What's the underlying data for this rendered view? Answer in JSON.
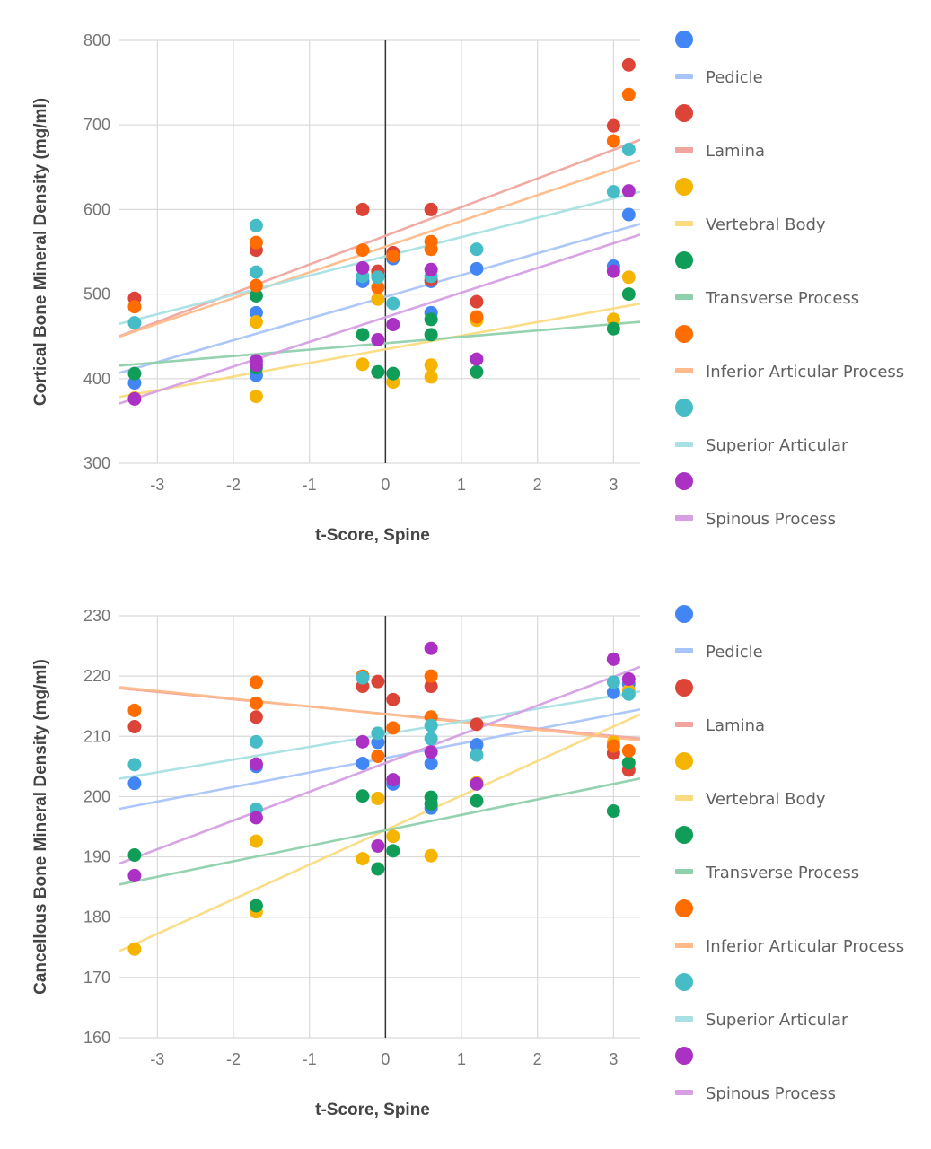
{
  "series_meta": [
    {
      "name": "Pedicle",
      "point_color": "#4285f4",
      "line_color": "#a9c4f9"
    },
    {
      "name": "Lamina",
      "point_color": "#db4437",
      "line_color": "#f0a59f"
    },
    {
      "name": "Vertebral Body",
      "point_color": "#f4b400",
      "line_color": "#fadb80"
    },
    {
      "name": "Transverse Process",
      "point_color": "#0f9d58",
      "line_color": "#8fd0ac"
    },
    {
      "name": "Inferior Articular Process",
      "point_color": "#ff6d01",
      "line_color": "#ffba8a"
    },
    {
      "name": "Superior Articular",
      "point_color": "#46bdc6",
      "line_color": "#a9e0e4"
    },
    {
      "name": "Spinous Process",
      "point_color": "#ab30c4",
      "line_color": "#d6a0e3"
    }
  ],
  "chart_data": [
    {
      "type": "scatter",
      "xlabel": "t-Score, Spine",
      "ylabel": "Cortical Bone Mineral Density (mg/ml)",
      "xlim": [
        -3.5,
        3.35
      ],
      "ylim": [
        300,
        800
      ],
      "xticks": [
        -3,
        -2,
        -1,
        0,
        1,
        2,
        3
      ],
      "yticks": [
        300,
        400,
        500,
        600,
        700,
        800
      ],
      "grid": true,
      "legend": "right",
      "trendlines": "linear",
      "series": [
        {
          "name": "Pedicle",
          "points": [
            [
              -3.3,
              395
            ],
            [
              -1.7,
              478
            ],
            [
              -1.7,
              404
            ],
            [
              -0.3,
              515
            ],
            [
              -0.1,
              522
            ],
            [
              0.1,
              542
            ],
            [
              0.6,
              515
            ],
            [
              0.6,
              478
            ],
            [
              1.2,
              530
            ],
            [
              3.0,
              533
            ],
            [
              3.2,
              594
            ]
          ]
        },
        {
          "name": "Lamina",
          "points": [
            [
              -3.3,
              495
            ],
            [
              -1.7,
              552
            ],
            [
              -0.3,
              600
            ],
            [
              -0.1,
              527
            ],
            [
              0.1,
              549
            ],
            [
              0.6,
              600
            ],
            [
              0.6,
              517
            ],
            [
              1.2,
              491
            ],
            [
              3.0,
              699
            ],
            [
              3.2,
              771
            ]
          ]
        },
        {
          "name": "Vertebral Body",
          "points": [
            [
              -3.3,
              377
            ],
            [
              -1.7,
              467
            ],
            [
              -1.7,
              379
            ],
            [
              -0.3,
              417
            ],
            [
              -0.1,
              494
            ],
            [
              0.1,
              396
            ],
            [
              0.6,
              416
            ],
            [
              0.6,
              402
            ],
            [
              1.2,
              469
            ],
            [
              3.0,
              470
            ],
            [
              3.2,
              520
            ]
          ]
        },
        {
          "name": "Transverse Process",
          "points": [
            [
              -3.3,
              406
            ],
            [
              -1.7,
              498
            ],
            [
              -1.7,
              413
            ],
            [
              -0.3,
              452
            ],
            [
              -0.1,
              408
            ],
            [
              0.1,
              406
            ],
            [
              0.6,
              470
            ],
            [
              0.6,
              452
            ],
            [
              1.2,
              408
            ],
            [
              3.0,
              459
            ],
            [
              3.2,
              500
            ]
          ]
        },
        {
          "name": "Inferior Articular Process",
          "points": [
            [
              -3.3,
              485
            ],
            [
              -1.7,
              561
            ],
            [
              -1.7,
              510
            ],
            [
              -0.3,
              552
            ],
            [
              -0.1,
              508
            ],
            [
              0.1,
              545
            ],
            [
              0.6,
              562
            ],
            [
              0.6,
              553
            ],
            [
              1.2,
              473
            ],
            [
              3.0,
              681
            ],
            [
              3.2,
              736
            ]
          ]
        },
        {
          "name": "Superior Articular",
          "points": [
            [
              -3.3,
              466
            ],
            [
              -1.7,
              581
            ],
            [
              -1.7,
              526
            ],
            [
              -0.3,
              521
            ],
            [
              -0.1,
              520
            ],
            [
              0.1,
              489
            ],
            [
              0.6,
              521
            ],
            [
              1.2,
              553
            ],
            [
              3.0,
              621
            ],
            [
              3.2,
              671
            ]
          ]
        },
        {
          "name": "Spinous Process",
          "points": [
            [
              -3.3,
              376
            ],
            [
              -1.7,
              421
            ],
            [
              -1.7,
              416
            ],
            [
              -0.3,
              531
            ],
            [
              -0.1,
              446
            ],
            [
              0.1,
              464
            ],
            [
              0.6,
              529
            ],
            [
              1.2,
              423
            ],
            [
              3.0,
              527
            ],
            [
              3.2,
              622
            ]
          ]
        }
      ]
    },
    {
      "type": "scatter",
      "xlabel": "t-Score, Spine",
      "ylabel": "Cancellous Bone Mineral Density (mg/ml)",
      "xlim": [
        -3.5,
        3.35
      ],
      "ylim": [
        160,
        230
      ],
      "xticks": [
        -3,
        -2,
        -1,
        0,
        1,
        2,
        3
      ],
      "yticks": [
        160,
        170,
        180,
        190,
        200,
        210,
        220,
        230
      ],
      "grid": true,
      "legend": "right",
      "trendlines": "linear",
      "series": [
        {
          "name": "Pedicle",
          "points": [
            [
              -3.3,
              202.2
            ],
            [
              -1.7,
              205
            ],
            [
              -0.3,
              205.5
            ],
            [
              -0.1,
              209
            ],
            [
              0.1,
              202.1
            ],
            [
              0.6,
              205.5
            ],
            [
              0.6,
              198.1
            ],
            [
              1.2,
              208.6
            ],
            [
              3.0,
              217.3
            ],
            [
              3.2,
              218.7
            ]
          ]
        },
        {
          "name": "Lamina",
          "points": [
            [
              -3.3,
              211.6
            ],
            [
              -1.7,
              213.2
            ],
            [
              -0.3,
              218.3
            ],
            [
              -0.1,
              219.1
            ],
            [
              0.1,
              216.1
            ],
            [
              0.6,
              218.3
            ],
            [
              1.2,
              212
            ],
            [
              3.0,
              207.2
            ],
            [
              3.2,
              204.4
            ]
          ]
        },
        {
          "name": "Vertebral Body",
          "points": [
            [
              -3.3,
              174.7
            ],
            [
              -1.7,
              192.6
            ],
            [
              -1.7,
              180.9
            ],
            [
              -0.3,
              189.7
            ],
            [
              -0.1,
              199.7
            ],
            [
              0.1,
              193.4
            ],
            [
              0.6,
              190.2
            ],
            [
              1.2,
              202.3
            ],
            [
              3.0,
              209
            ],
            [
              3.2,
              217.6
            ]
          ]
        },
        {
          "name": "Transverse Process",
          "points": [
            [
              -3.3,
              190.3
            ],
            [
              -1.7,
              181.9
            ],
            [
              -0.3,
              200.1
            ],
            [
              -0.1,
              188
            ],
            [
              0.1,
              191
            ],
            [
              0.6,
              199.9
            ],
            [
              0.6,
              198.8
            ],
            [
              1.2,
              199.3
            ],
            [
              3.0,
              197.6
            ],
            [
              3.2,
              205.6
            ]
          ]
        },
        {
          "name": "Inferior Articular Process",
          "points": [
            [
              -3.3,
              214.3
            ],
            [
              -1.7,
              219
            ],
            [
              -1.7,
              215.5
            ],
            [
              -0.3,
              220
            ],
            [
              -0.1,
              206.7
            ],
            [
              0.1,
              211.4
            ],
            [
              0.6,
              220
            ],
            [
              0.6,
              213.2
            ],
            [
              3.0,
              208.4
            ],
            [
              3.2,
              207.6
            ]
          ]
        },
        {
          "name": "Superior Articular",
          "points": [
            [
              -3.3,
              205.3
            ],
            [
              -1.7,
              209.1
            ],
            [
              -1.7,
              197.9
            ],
            [
              -0.3,
              219.7
            ],
            [
              -0.1,
              210.5
            ],
            [
              0.6,
              211.8
            ],
            [
              0.6,
              209.6
            ],
            [
              1.2,
              206.9
            ],
            [
              3.0,
              219
            ],
            [
              3.2,
              217
            ]
          ]
        },
        {
          "name": "Spinous Process",
          "points": [
            [
              -3.3,
              186.9
            ],
            [
              -1.7,
              205.4
            ],
            [
              -1.7,
              196.5
            ],
            [
              -0.3,
              209.1
            ],
            [
              -0.1,
              191.8
            ],
            [
              0.1,
              202.8
            ],
            [
              0.6,
              224.6
            ],
            [
              0.6,
              207.4
            ],
            [
              1.2,
              202.1
            ],
            [
              3.0,
              222.8
            ],
            [
              3.2,
              219.5
            ]
          ]
        }
      ]
    }
  ]
}
